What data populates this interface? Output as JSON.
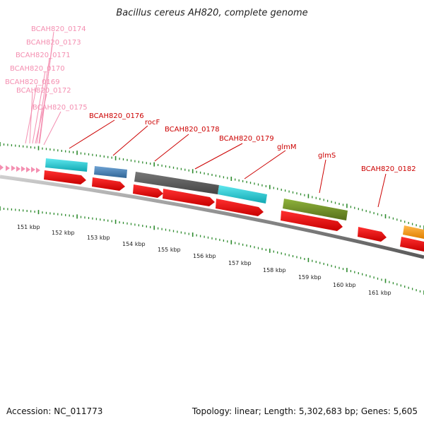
{
  "title": "Bacillus cereus AH820, complete genome",
  "footer": {
    "accession": "Accession: NC_011773",
    "summary": "Topology: linear; Length: 5,302,683 bp; Genes: 5,605"
  },
  "gene_labels": [
    {
      "id": "bcah820-0174",
      "text": "BCAH820_0174",
      "color": "pink"
    },
    {
      "id": "bcah820-0173",
      "text": "BCAH820_0173",
      "color": "pink"
    },
    {
      "id": "bcah820-0171",
      "text": "BCAH820_0171",
      "color": "pink"
    },
    {
      "id": "bcah820-0170",
      "text": "BCAH820_0170",
      "color": "pink"
    },
    {
      "id": "bcah820-0169",
      "text": "BCAH820_0169",
      "color": "pink"
    },
    {
      "id": "bcah820-0172",
      "text": "BCAH820_0172",
      "color": "pink"
    },
    {
      "id": "bcah820-0175",
      "text": "BCAH820_0175",
      "color": "pink"
    },
    {
      "id": "bcah820-0176",
      "text": "BCAH820_0176",
      "color": "red"
    },
    {
      "id": "rocf",
      "text": "rocF",
      "color": "red"
    },
    {
      "id": "bcah820-0178",
      "text": "BCAH820_0178",
      "color": "red"
    },
    {
      "id": "bcah820-0179",
      "text": "BCAH820_0179",
      "color": "red"
    },
    {
      "id": "glmm",
      "text": "glmM",
      "color": "red"
    },
    {
      "id": "glms",
      "text": "glmS",
      "color": "red"
    },
    {
      "id": "bcah820-0182",
      "text": "BCAH820_0182",
      "color": "red"
    }
  ],
  "scale_labels": [
    "151 kbp",
    "152 kbp",
    "153 kbp",
    "154 kbp",
    "155 kbp",
    "156 kbp",
    "157 kbp",
    "158 kbp",
    "159 kbp",
    "160 kbp",
    "161 kbp"
  ],
  "colors": {
    "pink": "#f48fb1",
    "red_label": "#cc0000",
    "cds": "#ee0000",
    "cyan": "#19c8d2",
    "steel_blue": "#4682b4",
    "dark_gray": "#5a5a5a",
    "olive": "#6b8e23",
    "orange": "#ff9900",
    "axis": "#909090",
    "tick": "#2e8b2e"
  }
}
